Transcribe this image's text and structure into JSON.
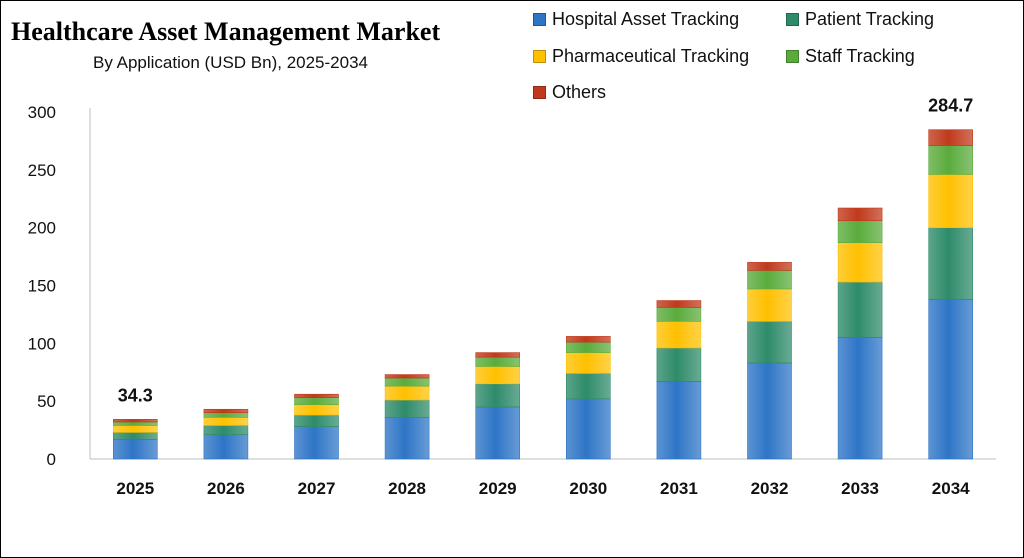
{
  "chart_data": {
    "type": "bar",
    "stacked": true,
    "title": "Healthcare Asset Management Market",
    "subtitle": "By Application (USD Bn), 2025-2034",
    "xlabel": "",
    "ylabel": "",
    "ylim": [
      0,
      300
    ],
    "yticks": [
      0,
      50,
      100,
      150,
      200,
      250,
      300
    ],
    "grid": false,
    "legend_position": "top-right",
    "categories": [
      "2025",
      "2026",
      "2027",
      "2028",
      "2029",
      "2030",
      "2031",
      "2032",
      "2033",
      "2034"
    ],
    "series": [
      {
        "name": "Hospital Asset Tracking",
        "color": "#2e75c6",
        "values": [
          17,
          21,
          28,
          36,
          45,
          52,
          67,
          83,
          105,
          138
        ]
      },
      {
        "name": "Patient Tracking",
        "color": "#2e8b6a",
        "values": [
          6,
          8,
          10,
          15,
          20,
          22,
          29,
          36,
          48,
          62
        ]
      },
      {
        "name": "Pharmaceutical Tracking",
        "color": "#ffc000",
        "values": [
          6,
          7,
          9,
          12,
          15,
          18,
          23,
          28,
          34,
          46
        ]
      },
      {
        "name": "Staff Tracking",
        "color": "#5aab3c",
        "values": [
          3,
          4,
          6,
          7,
          8,
          9,
          12,
          16,
          19,
          25
        ]
      },
      {
        "name": "Others",
        "color": "#c0391b",
        "values": [
          2.3,
          3,
          3,
          3,
          4,
          5,
          6,
          7,
          11,
          13.7
        ]
      }
    ],
    "data_labels": [
      {
        "category": "2025",
        "text": "34.3"
      },
      {
        "category": "2034",
        "text": "284.7"
      }
    ]
  }
}
